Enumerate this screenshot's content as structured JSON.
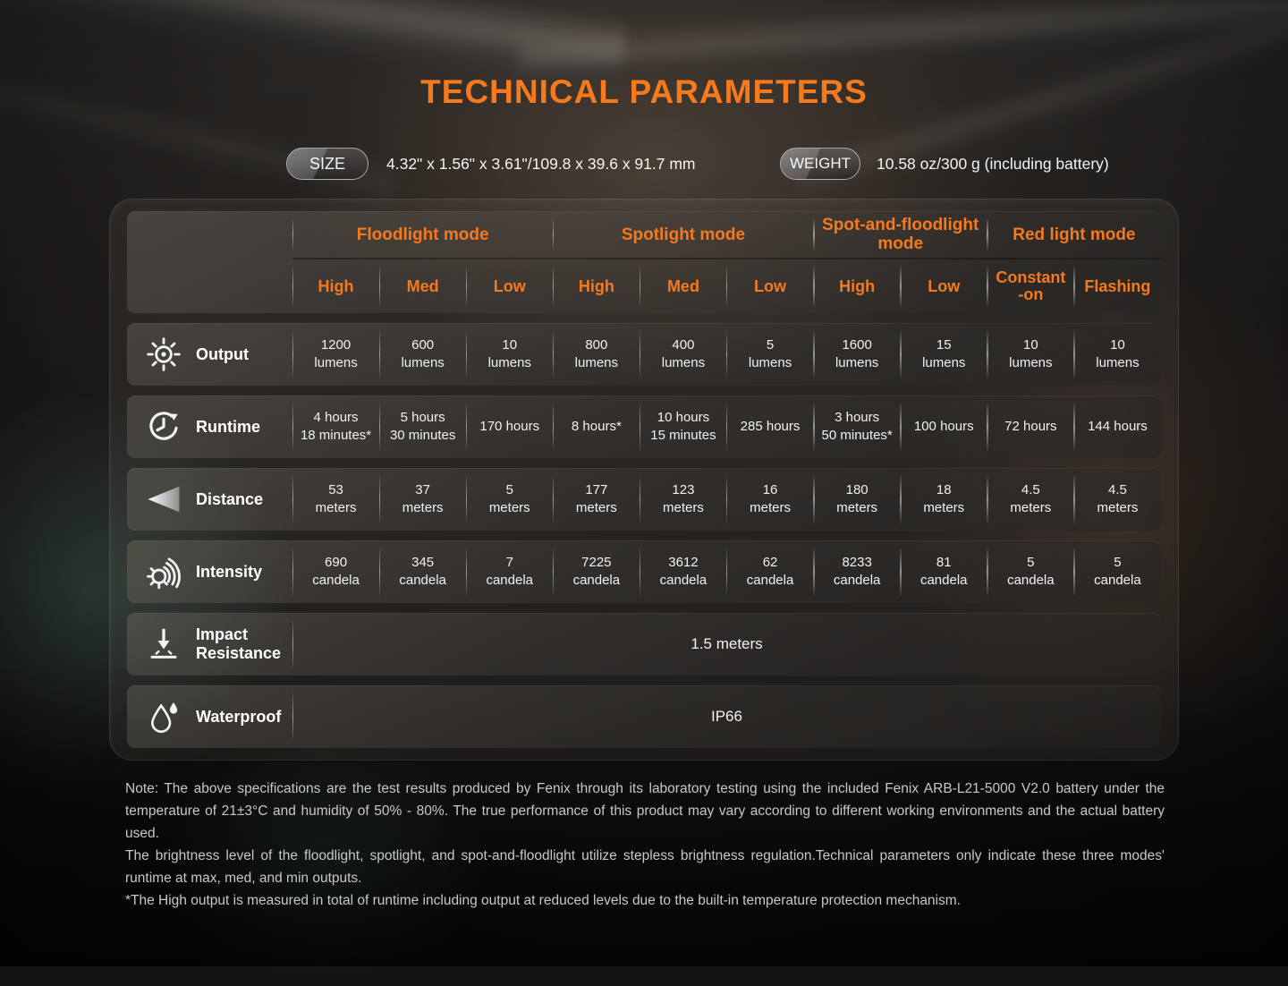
{
  "title": "TECHNICAL PARAMETERS",
  "colors": {
    "accent_orange": "#f5791d",
    "text_light": "#f1f1f1",
    "note_gray": "#c8c8c8"
  },
  "specs": {
    "size_label": "SIZE",
    "size_value": "4.32\" x 1.56\" x 3.61\"/109.8 x 39.6 x 91.7 mm",
    "weight_label": "WEIGHT",
    "weight_value": "10.58 oz/300 g (including battery)"
  },
  "table": {
    "mode_groups": [
      {
        "label": "Floodlight mode",
        "span": 3
      },
      {
        "label": "Spotlight mode",
        "span": 3
      },
      {
        "label": "Spot-and-floodlight mode",
        "span": 2
      },
      {
        "label": "Red light mode",
        "span": 2
      }
    ],
    "sub_headers": [
      "High",
      "Med",
      "Low",
      "High",
      "Med",
      "Low",
      "High",
      "Low",
      "Constant\n-on",
      "Flashing"
    ],
    "rows": [
      {
        "label": "Output",
        "icon": "brightness-sun-icon",
        "cells": [
          "1200\nlumens",
          "600\nlumens",
          "10\nlumens",
          "800\nlumens",
          "400\nlumens",
          "5\nlumens",
          "1600\nlumens",
          "15\nlumens",
          "10\nlumens",
          "10\nlumens"
        ]
      },
      {
        "label": "Runtime",
        "icon": "clock-icon",
        "cells": [
          "4 hours\n18 minutes*",
          "5 hours\n30 minutes",
          "170 hours",
          "8 hours*",
          "10 hours\n15 minutes",
          "285 hours",
          "3 hours\n50 minutes*",
          "100 hours",
          "72 hours",
          "144 hours"
        ]
      },
      {
        "label": "Distance",
        "icon": "beam-distance-icon",
        "cells": [
          "53\nmeters",
          "37\nmeters",
          "5\nmeters",
          "177\nmeters",
          "123\nmeters",
          "16\nmeters",
          "180\nmeters",
          "18\nmeters",
          "4.5\nmeters",
          "4.5\nmeters"
        ]
      },
      {
        "label": "Intensity",
        "icon": "intensity-rays-icon",
        "cells": [
          "690\ncandela",
          "345\ncandela",
          "7\ncandela",
          "7225\ncandela",
          "3612\ncandela",
          "62\ncandela",
          "8233\ncandela",
          "81\ncandela",
          "5\ncandela",
          "5\ncandela"
        ]
      }
    ],
    "full_rows": [
      {
        "label": "Impact\nResistance",
        "icon": "impact-arrow-icon",
        "value": "1.5 meters"
      },
      {
        "label": "Waterproof",
        "icon": "water-drops-icon",
        "value": "IP66"
      }
    ]
  },
  "notes": [
    "Note: The above specifications are the test results produced by Fenix through its laboratory testing using the included Fenix ARB-L21-5000 V2.0 battery under the temperature of 21±3°C and humidity of 50% - 80%.  The true performance of this product may vary according to different working environments and the actual battery used.",
    "The brightness level of the floodlight, spotlight, and spot-and-floodlight utilize stepless brightness regulation.Technical parameters only indicate these three modes' runtime at max, med, and min outputs.",
    "*The High output is measured in total of runtime including output at reduced levels due to the built-in temperature protection mechanism."
  ]
}
